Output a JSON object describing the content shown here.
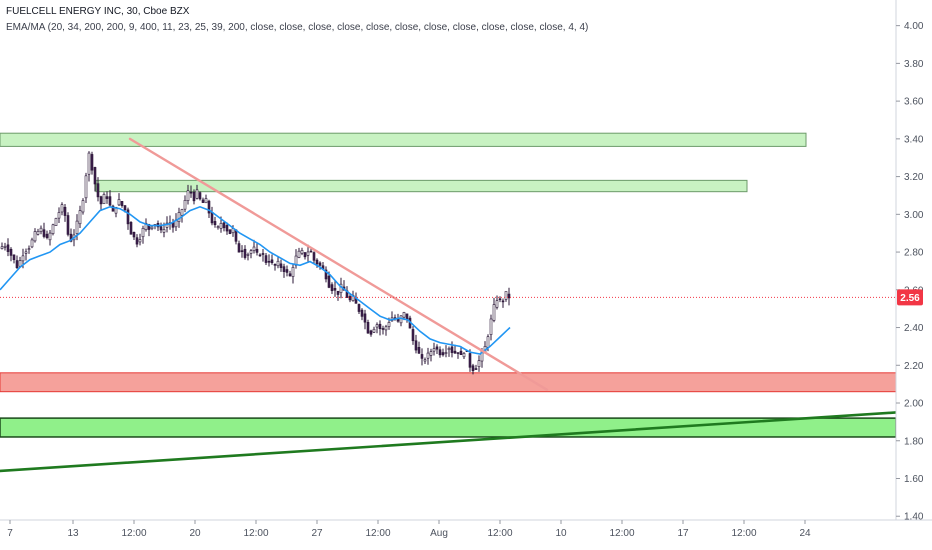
{
  "chart_title": "FUELCELL ENERGY INC, 30, Cboe BZX",
  "indicator_label": "EMA/MA (20, 34, 200, 200, 9, 400, 11, 23, 25, 39, 200, close, close, close, close, close, close, close, close, close, close, close, 4, 4)",
  "last_price_label": "2.56",
  "colors": {
    "up_candle": "#ffffff",
    "down_candle": "#3d1e4d",
    "ema_line": "#2196f3",
    "last_price": "#f23645",
    "green_zone": "#90f08a",
    "green_zone_light": "#c8f2c2",
    "red_zone": "#f5a19b",
    "trendline_down": "#f09a98",
    "trendline_up": "#1f7a1f"
  },
  "chart_data": {
    "type": "candlestick",
    "interval": "30",
    "y_axis": {
      "ylim": [
        1.38,
        4.12
      ],
      "ticks": [
        "4.00",
        "3.80",
        "3.60",
        "3.40",
        "3.20",
        "3.00",
        "2.80",
        "2.60",
        "2.40",
        "2.20",
        "2.00",
        "1.80",
        "1.60",
        "1.40"
      ]
    },
    "x_axis": {
      "ticks": [
        "7",
        "13",
        "12:00",
        "20",
        "12:00",
        "27",
        "12:00",
        "Aug",
        "12:00",
        "10",
        "12:00",
        "17",
        "12:00",
        "24"
      ]
    },
    "price_path": [
      [
        0,
        2.82
      ],
      [
        6,
        2.84
      ],
      [
        10,
        2.8
      ],
      [
        14,
        2.76
      ],
      [
        18,
        2.72
      ],
      [
        24,
        2.8
      ],
      [
        30,
        2.83
      ],
      [
        36,
        2.9
      ],
      [
        42,
        2.92
      ],
      [
        48,
        2.86
      ],
      [
        52,
        2.92
      ],
      [
        58,
        3.0
      ],
      [
        64,
        3.05
      ],
      [
        68,
        2.9
      ],
      [
        72,
        2.86
      ],
      [
        76,
        2.92
      ],
      [
        80,
        3.0
      ],
      [
        84,
        3.1
      ],
      [
        88,
        3.28
      ],
      [
        90,
        3.33
      ],
      [
        94,
        3.2
      ],
      [
        98,
        3.1
      ],
      [
        102,
        3.05
      ],
      [
        106,
        3.12
      ],
      [
        110,
        3.05
      ],
      [
        114,
        3.0
      ],
      [
        118,
        3.08
      ],
      [
        122,
        3.05
      ],
      [
        126,
        3.02
      ],
      [
        130,
        2.92
      ],
      [
        134,
        2.88
      ],
      [
        138,
        2.85
      ],
      [
        142,
        2.9
      ],
      [
        146,
        2.95
      ],
      [
        150,
        2.92
      ],
      [
        154,
        2.96
      ],
      [
        158,
        2.94
      ],
      [
        162,
        2.9
      ],
      [
        166,
        2.95
      ],
      [
        170,
        2.96
      ],
      [
        174,
        2.93
      ],
      [
        178,
        2.98
      ],
      [
        182,
        3.02
      ],
      [
        186,
        3.08
      ],
      [
        190,
        3.14
      ],
      [
        194,
        3.08
      ],
      [
        198,
        3.12
      ],
      [
        202,
        3.05
      ],
      [
        206,
        3.08
      ],
      [
        210,
        3.0
      ],
      [
        214,
        2.94
      ],
      [
        218,
        2.92
      ],
      [
        222,
        2.96
      ],
      [
        226,
        2.93
      ],
      [
        230,
        2.9
      ],
      [
        234,
        2.92
      ],
      [
        238,
        2.8
      ],
      [
        242,
        2.82
      ],
      [
        246,
        2.78
      ],
      [
        250,
        2.8
      ],
      [
        254,
        2.82
      ],
      [
        258,
        2.78
      ],
      [
        262,
        2.8
      ],
      [
        266,
        2.75
      ],
      [
        270,
        2.76
      ],
      [
        274,
        2.72
      ],
      [
        278,
        2.74
      ],
      [
        282,
        2.72
      ],
      [
        286,
        2.7
      ],
      [
        290,
        2.66
      ],
      [
        294,
        2.74
      ],
      [
        298,
        2.79
      ],
      [
        302,
        2.8
      ],
      [
        306,
        2.78
      ],
      [
        310,
        2.82
      ],
      [
        314,
        2.76
      ],
      [
        318,
        2.74
      ],
      [
        322,
        2.72
      ],
      [
        326,
        2.68
      ],
      [
        330,
        2.62
      ],
      [
        334,
        2.6
      ],
      [
        338,
        2.58
      ],
      [
        342,
        2.62
      ],
      [
        346,
        2.58
      ],
      [
        350,
        2.54
      ],
      [
        354,
        2.56
      ],
      [
        358,
        2.5
      ],
      [
        362,
        2.48
      ],
      [
        366,
        2.42
      ],
      [
        370,
        2.36
      ],
      [
        374,
        2.4
      ],
      [
        378,
        2.42
      ],
      [
        382,
        2.38
      ],
      [
        386,
        2.4
      ],
      [
        390,
        2.44
      ],
      [
        394,
        2.46
      ],
      [
        398,
        2.42
      ],
      [
        402,
        2.46
      ],
      [
        406,
        2.48
      ],
      [
        410,
        2.4
      ],
      [
        414,
        2.32
      ],
      [
        418,
        2.28
      ],
      [
        422,
        2.22
      ],
      [
        426,
        2.24
      ],
      [
        430,
        2.26
      ],
      [
        434,
        2.3
      ],
      [
        438,
        2.28
      ],
      [
        442,
        2.26
      ],
      [
        446,
        2.28
      ],
      [
        450,
        2.3
      ],
      [
        454,
        2.26
      ],
      [
        458,
        2.28
      ],
      [
        462,
        2.24
      ],
      [
        466,
        2.3
      ],
      [
        470,
        2.2
      ],
      [
        474,
        2.18
      ],
      [
        478,
        2.2
      ],
      [
        482,
        2.26
      ],
      [
        486,
        2.3
      ],
      [
        490,
        2.4
      ],
      [
        494,
        2.5
      ],
      [
        498,
        2.56
      ],
      [
        502,
        2.53
      ],
      [
        506,
        2.58
      ],
      [
        510,
        2.56
      ]
    ],
    "ema": [
      [
        0,
        2.6
      ],
      [
        10,
        2.66
      ],
      [
        20,
        2.72
      ],
      [
        30,
        2.76
      ],
      [
        40,
        2.78
      ],
      [
        50,
        2.8
      ],
      [
        60,
        2.84
      ],
      [
        70,
        2.86
      ],
      [
        80,
        2.9
      ],
      [
        90,
        2.96
      ],
      [
        100,
        3.02
      ],
      [
        110,
        3.04
      ],
      [
        120,
        3.03
      ],
      [
        130,
        3.0
      ],
      [
        140,
        2.96
      ],
      [
        150,
        2.94
      ],
      [
        160,
        2.94
      ],
      [
        170,
        2.95
      ],
      [
        180,
        2.98
      ],
      [
        190,
        3.02
      ],
      [
        200,
        3.04
      ],
      [
        210,
        3.02
      ],
      [
        220,
        2.98
      ],
      [
        230,
        2.94
      ],
      [
        240,
        2.9
      ],
      [
        250,
        2.87
      ],
      [
        260,
        2.84
      ],
      [
        270,
        2.8
      ],
      [
        280,
        2.77
      ],
      [
        290,
        2.74
      ],
      [
        300,
        2.73
      ],
      [
        310,
        2.75
      ],
      [
        320,
        2.72
      ],
      [
        330,
        2.68
      ],
      [
        340,
        2.62
      ],
      [
        350,
        2.58
      ],
      [
        360,
        2.54
      ],
      [
        370,
        2.5
      ],
      [
        380,
        2.46
      ],
      [
        390,
        2.44
      ],
      [
        400,
        2.45
      ],
      [
        408,
        2.44
      ],
      [
        420,
        2.38
      ],
      [
        430,
        2.34
      ],
      [
        440,
        2.32
      ],
      [
        450,
        2.31
      ],
      [
        460,
        2.3
      ],
      [
        470,
        2.27
      ],
      [
        480,
        2.26
      ],
      [
        490,
        2.3
      ],
      [
        500,
        2.35
      ],
      [
        510,
        2.4
      ]
    ],
    "last_price": 2.56,
    "annotations": [
      {
        "kind": "zone",
        "color": "green_zone_light",
        "from": 3.36,
        "to": 3.43,
        "x_end": 806
      },
      {
        "kind": "zone",
        "color": "green_zone_light",
        "from": 3.12,
        "to": 3.18,
        "x_start": 96,
        "x_end": 747
      },
      {
        "kind": "zone",
        "color": "red_zone",
        "from": 2.06,
        "to": 2.16
      },
      {
        "kind": "zone",
        "color": "green_zone",
        "from": 1.82,
        "to": 1.92
      },
      {
        "kind": "trendline",
        "color": "trendline_down",
        "from": [
          130,
          3.4
        ],
        "to": [
          547,
          2.07
        ]
      },
      {
        "kind": "trendline",
        "color": "trendline_up",
        "from": [
          0,
          1.64
        ],
        "to": [
          898,
          1.95
        ]
      }
    ]
  }
}
